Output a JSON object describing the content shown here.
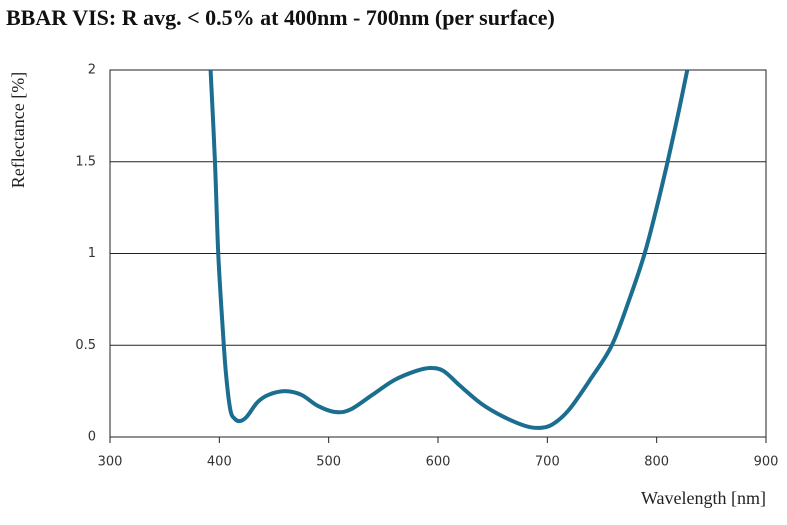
{
  "chart_data": {
    "type": "line",
    "title": "BBAR VIS: R avg. < 0.5% at 400nm - 700nm (per surface)",
    "x_label": "Wavelength [nm]",
    "y_label": "Reflectance [%]",
    "x": [
      392,
      396,
      399,
      403,
      406,
      410,
      414,
      419,
      425,
      435,
      445,
      460,
      475,
      490,
      506,
      520,
      540,
      560,
      580,
      593,
      605,
      620,
      640,
      660,
      680,
      693,
      705,
      720,
      740,
      759,
      775,
      789,
      800,
      810,
      820,
      828
    ],
    "values": [
      2.0,
      1.5,
      1.0,
      0.6,
      0.35,
      0.15,
      0.1,
      0.087,
      0.11,
      0.19,
      0.23,
      0.25,
      0.23,
      0.17,
      0.136,
      0.15,
      0.23,
      0.31,
      0.36,
      0.376,
      0.36,
      0.28,
      0.18,
      0.11,
      0.06,
      0.05,
      0.07,
      0.15,
      0.32,
      0.5,
      0.75,
      1.0,
      1.25,
      1.5,
      1.77,
      2.0
    ],
    "color": "#1b6e8f",
    "xlim": [
      300,
      900
    ],
    "xticks": [
      300,
      400,
      500,
      600,
      700,
      800,
      900
    ],
    "ylim": [
      0,
      2
    ],
    "yticks": [
      0,
      0.5,
      1,
      1.5,
      2
    ],
    "grid": true
  }
}
